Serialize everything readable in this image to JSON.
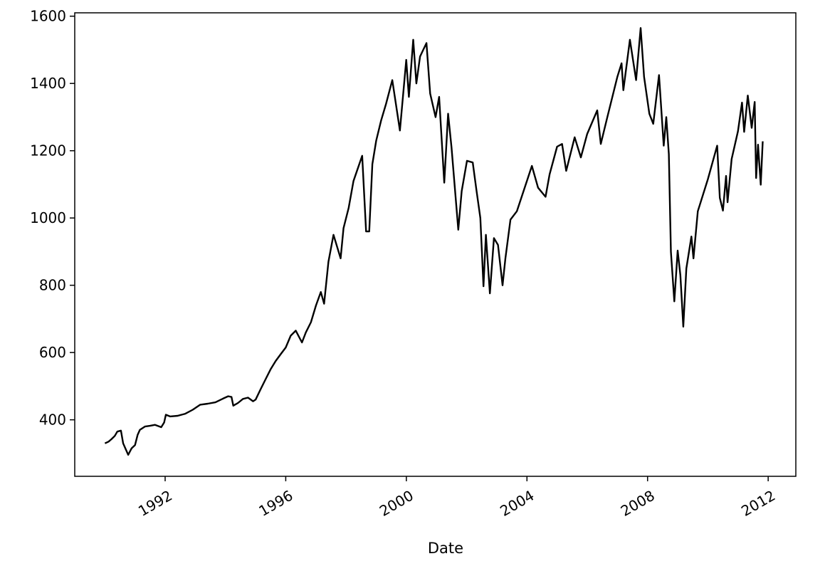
{
  "chart_data": {
    "type": "line",
    "title": "",
    "xlabel": "Date",
    "ylabel": "",
    "x_axis_type": "date",
    "xlim": [
      "1989-01-01",
      "2012-12-01"
    ],
    "ylim": [
      232,
      1610
    ],
    "xticks": [
      {
        "date": "1992-01-01",
        "label": "1992"
      },
      {
        "date": "1996-01-01",
        "label": "1996"
      },
      {
        "date": "2000-01-01",
        "label": "2000"
      },
      {
        "date": "2004-01-01",
        "label": "2004"
      },
      {
        "date": "2008-01-01",
        "label": "2008"
      },
      {
        "date": "2012-01-01",
        "label": "2012"
      }
    ],
    "yticks": [
      400,
      600,
      800,
      1000,
      1200,
      1400,
      1600
    ],
    "grid": false,
    "legend": "none",
    "line_color": "#000000",
    "series": [
      {
        "name": "",
        "points": [
          [
            "1990-01-02",
            330
          ],
          [
            "1990-02-15",
            335
          ],
          [
            "1990-03-20",
            342
          ],
          [
            "1990-05-01",
            352
          ],
          [
            "1990-06-01",
            365
          ],
          [
            "1990-07-15",
            368
          ],
          [
            "1990-08-10",
            330
          ],
          [
            "1990-09-01",
            318
          ],
          [
            "1990-10-11",
            296
          ],
          [
            "1990-11-20",
            315
          ],
          [
            "1991-01-01",
            325
          ],
          [
            "1991-02-01",
            355
          ],
          [
            "1991-03-01",
            370
          ],
          [
            "1991-05-01",
            380
          ],
          [
            "1991-07-01",
            382
          ],
          [
            "1991-09-01",
            385
          ],
          [
            "1991-11-15",
            378
          ],
          [
            "1991-12-20",
            392
          ],
          [
            "1992-01-10",
            415
          ],
          [
            "1992-03-01",
            410
          ],
          [
            "1992-06-01",
            412
          ],
          [
            "1992-09-01",
            418
          ],
          [
            "1992-12-01",
            430
          ],
          [
            "1993-03-01",
            445
          ],
          [
            "1993-06-01",
            448
          ],
          [
            "1993-09-01",
            452
          ],
          [
            "1993-12-01",
            463
          ],
          [
            "1994-02-01",
            470
          ],
          [
            "1994-03-15",
            468
          ],
          [
            "1994-04-05",
            442
          ],
          [
            "1994-06-01",
            450
          ],
          [
            "1994-08-01",
            462
          ],
          [
            "1994-10-01",
            466
          ],
          [
            "1994-12-01",
            455
          ],
          [
            "1995-01-01",
            460
          ],
          [
            "1995-03-01",
            490
          ],
          [
            "1995-05-01",
            520
          ],
          [
            "1995-07-01",
            550
          ],
          [
            "1995-09-01",
            575
          ],
          [
            "1995-11-01",
            595
          ],
          [
            "1996-01-01",
            615
          ],
          [
            "1996-03-01",
            650
          ],
          [
            "1996-05-01",
            665
          ],
          [
            "1996-07-15",
            630
          ],
          [
            "1996-09-01",
            660
          ],
          [
            "1996-11-01",
            690
          ],
          [
            "1997-01-01",
            740
          ],
          [
            "1997-03-01",
            780
          ],
          [
            "1997-04-10",
            745
          ],
          [
            "1997-06-01",
            870
          ],
          [
            "1997-08-01",
            950
          ],
          [
            "1997-10-27",
            880
          ],
          [
            "1997-12-01",
            970
          ],
          [
            "1998-02-01",
            1030
          ],
          [
            "1998-04-01",
            1110
          ],
          [
            "1998-07-15",
            1185
          ],
          [
            "1998-08-31",
            960
          ],
          [
            "1998-10-08",
            960
          ],
          [
            "1998-11-15",
            1160
          ],
          [
            "1999-01-01",
            1230
          ],
          [
            "1999-03-01",
            1290
          ],
          [
            "1999-05-01",
            1340
          ],
          [
            "1999-07-15",
            1410
          ],
          [
            "1999-10-15",
            1260
          ],
          [
            "1999-12-31",
            1470
          ],
          [
            "2000-02-01",
            1360
          ],
          [
            "2000-03-24",
            1530
          ],
          [
            "2000-05-01",
            1400
          ],
          [
            "2000-06-15",
            1480
          ],
          [
            "2000-09-01",
            1520
          ],
          [
            "2000-10-15",
            1370
          ],
          [
            "2000-12-20",
            1300
          ],
          [
            "2001-02-01",
            1360
          ],
          [
            "2001-04-04",
            1105
          ],
          [
            "2001-05-21",
            1310
          ],
          [
            "2001-07-01",
            1210
          ],
          [
            "2001-09-21",
            965
          ],
          [
            "2001-11-01",
            1080
          ],
          [
            "2002-01-04",
            1170
          ],
          [
            "2002-03-15",
            1165
          ],
          [
            "2002-05-01",
            1080
          ],
          [
            "2002-06-15",
            1000
          ],
          [
            "2002-07-23",
            797
          ],
          [
            "2002-08-22",
            950
          ],
          [
            "2002-10-09",
            776
          ],
          [
            "2002-11-27",
            940
          ],
          [
            "2003-01-15",
            920
          ],
          [
            "2003-03-11",
            800
          ],
          [
            "2003-04-15",
            880
          ],
          [
            "2003-06-15",
            995
          ],
          [
            "2003-09-01",
            1020
          ],
          [
            "2003-12-31",
            1110
          ],
          [
            "2004-03-01",
            1155
          ],
          [
            "2004-05-15",
            1090
          ],
          [
            "2004-08-13",
            1063
          ],
          [
            "2004-10-01",
            1130
          ],
          [
            "2004-12-31",
            1212
          ],
          [
            "2005-03-01",
            1220
          ],
          [
            "2005-04-20",
            1140
          ],
          [
            "2005-08-01",
            1240
          ],
          [
            "2005-10-15",
            1180
          ],
          [
            "2005-12-31",
            1250
          ],
          [
            "2006-05-01",
            1320
          ],
          [
            "2006-06-13",
            1220
          ],
          [
            "2006-09-01",
            1300
          ],
          [
            "2006-12-31",
            1420
          ],
          [
            "2007-02-20",
            1460
          ],
          [
            "2007-03-14",
            1380
          ],
          [
            "2007-06-01",
            1530
          ],
          [
            "2007-08-15",
            1410
          ],
          [
            "2007-10-09",
            1565
          ],
          [
            "2007-11-20",
            1420
          ],
          [
            "2008-01-22",
            1310
          ],
          [
            "2008-03-10",
            1280
          ],
          [
            "2008-05-19",
            1425
          ],
          [
            "2008-07-15",
            1215
          ],
          [
            "2008-08-15",
            1300
          ],
          [
            "2008-09-15",
            1190
          ],
          [
            "2008-10-10",
            900
          ],
          [
            "2008-11-20",
            752
          ],
          [
            "2008-12-31",
            903
          ],
          [
            "2009-02-01",
            830
          ],
          [
            "2009-03-09",
            677
          ],
          [
            "2009-04-15",
            850
          ],
          [
            "2009-06-15",
            945
          ],
          [
            "2009-07-10",
            880
          ],
          [
            "2009-09-01",
            1020
          ],
          [
            "2009-12-31",
            1115
          ],
          [
            "2010-04-23",
            1215
          ],
          [
            "2010-05-25",
            1060
          ],
          [
            "2010-07-02",
            1022
          ],
          [
            "2010-08-09",
            1125
          ],
          [
            "2010-08-27",
            1047
          ],
          [
            "2010-10-15",
            1175
          ],
          [
            "2010-12-31",
            1258
          ],
          [
            "2011-02-18",
            1343
          ],
          [
            "2011-03-16",
            1256
          ],
          [
            "2011-04-29",
            1364
          ],
          [
            "2011-06-15",
            1268
          ],
          [
            "2011-07-22",
            1345
          ],
          [
            "2011-08-08",
            1119
          ],
          [
            "2011-08-31",
            1218
          ],
          [
            "2011-10-03",
            1099
          ],
          [
            "2011-10-27",
            1228
          ]
        ]
      }
    ]
  }
}
